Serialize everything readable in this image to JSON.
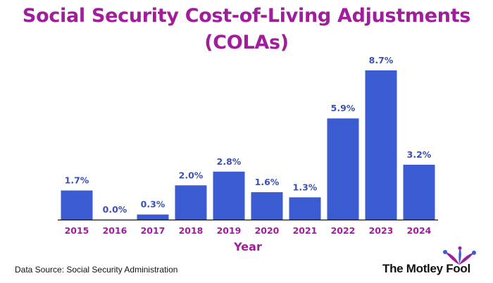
{
  "chart_data": {
    "type": "bar",
    "title_line1": "Social Security Cost-of-Living Adjustments",
    "title_line2": "(COLAs)",
    "xlabel": "Year",
    "ylabel": "",
    "categories": [
      "2015",
      "2016",
      "2017",
      "2018",
      "2019",
      "2020",
      "2021",
      "2022",
      "2023",
      "2024"
    ],
    "values": [
      1.7,
      0.0,
      0.3,
      2.0,
      2.8,
      1.6,
      1.3,
      5.9,
      8.7,
      3.2
    ],
    "data_labels": [
      "1.7%",
      "0.0%",
      "0.3%",
      "2.0%",
      "2.8%",
      "1.6%",
      "1.3%",
      "5.9%",
      "8.7%",
      "3.2%"
    ],
    "ylim": [
      0,
      8.7
    ],
    "grid": false,
    "legend": "none",
    "colors": {
      "bar": "#3a5bd1",
      "data_label": "#3a4fb8",
      "tick_label": "#a01e9b",
      "axis_title": "#a01e9b",
      "title": "#a01e9b",
      "axis_line": "#111111"
    }
  },
  "footer": {
    "source": "Data Source: Social Security Administration",
    "brand": "The Motley Fool"
  },
  "brand_icon": "jester-hat-icon"
}
